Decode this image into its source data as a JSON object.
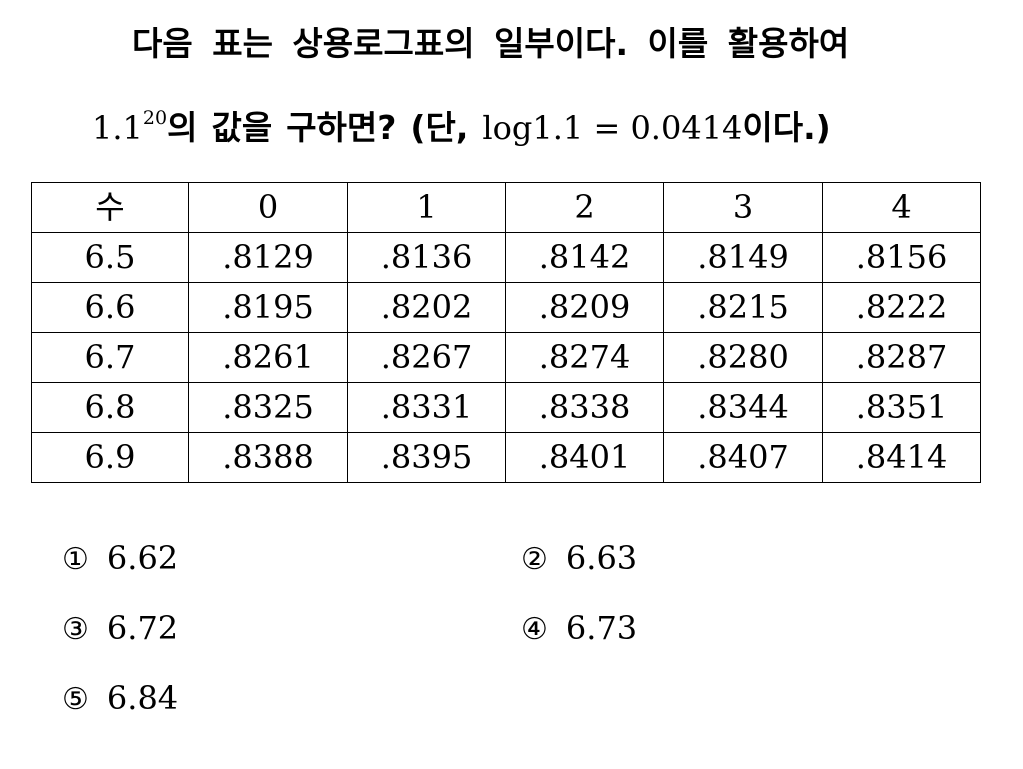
{
  "question": {
    "line1": "다음 표는 상용로그표의 일부이다. 이를 활용하여",
    "base": "1.1",
    "exponent": "20",
    "text_a": "의",
    "text_b": "값을",
    "text_c": "구하면?",
    "text_d": "(단,",
    "condition": "log1.1 = 0.0414",
    "text_e": "이다.)"
  },
  "table": {
    "header": [
      "수",
      "0",
      "1",
      "2",
      "3",
      "4"
    ],
    "rows": [
      [
        "6.5",
        ".8129",
        ".8136",
        ".8142",
        ".8149",
        ".8156"
      ],
      [
        "6.6",
        ".8195",
        ".8202",
        ".8209",
        ".8215",
        ".8222"
      ],
      [
        "6.7",
        ".8261",
        ".8267",
        ".8274",
        ".8280",
        ".8287"
      ],
      [
        "6.8",
        ".8325",
        ".8331",
        ".8338",
        ".8344",
        ".8351"
      ],
      [
        "6.9",
        ".8388",
        ".8395",
        ".8401",
        ".8407",
        ".8414"
      ]
    ]
  },
  "choices": [
    {
      "number": "①",
      "value": "6.62"
    },
    {
      "number": "②",
      "value": "6.63"
    },
    {
      "number": "③",
      "value": "6.72"
    },
    {
      "number": "④",
      "value": "6.73"
    },
    {
      "number": "⑤",
      "value": "6.84"
    }
  ]
}
